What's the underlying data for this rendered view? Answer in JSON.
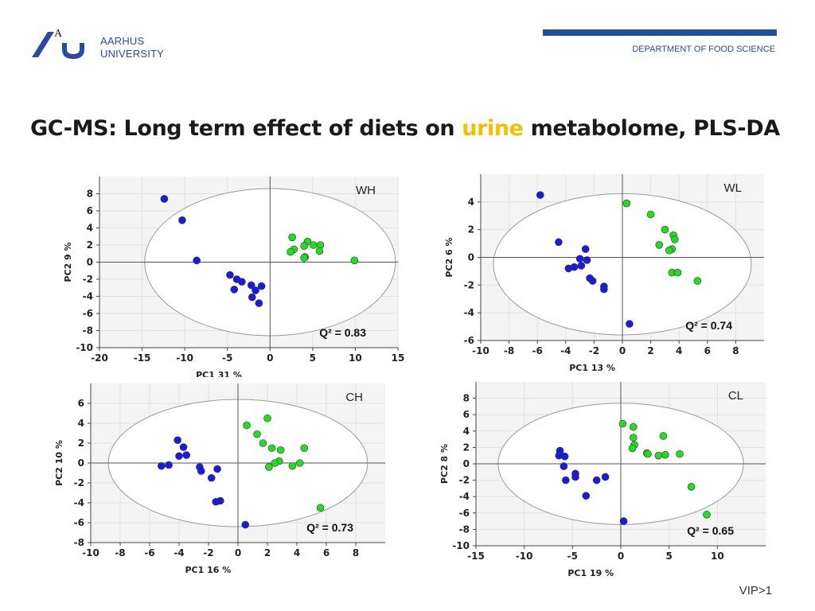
{
  "header": {
    "university_line1": "AARHUS",
    "university_line2": "UNIVERSITY",
    "logo_letter": "A",
    "department": "DEPARTMENT OF FOOD SCIENCE"
  },
  "title": {
    "prefix": "GC-MS: Long term effect of diets on ",
    "highlight": "urine",
    "suffix": " metabolome, PLS-DA"
  },
  "footer": {
    "note": "VIP>1"
  },
  "colors": {
    "group1": "#1a1ae0",
    "group2": "#22dd22",
    "accent": "#f2c000",
    "brand": "#1f4ea3"
  },
  "chart_data": [
    {
      "type": "scatter",
      "panel_label": "WH",
      "q2": "Q² = 0.83",
      "xlabel": "PC1 31 %",
      "ylabel": "PC2 9 %",
      "xlim": [
        -20,
        15
      ],
      "ylim": [
        -10,
        10
      ],
      "xticks": [
        -20,
        -15,
        -10,
        -5,
        0,
        5,
        10,
        15
      ],
      "yticks": [
        -10,
        -8,
        -6,
        -4,
        -2,
        0,
        2,
        4,
        6,
        8
      ],
      "ellipse": {
        "cx": 0,
        "cy": 0,
        "rx": 14.7,
        "ry": 8.6
      },
      "series": [
        {
          "name": "blue",
          "color": "#1a1ae0",
          "points": [
            [
              -12.4,
              7.4
            ],
            [
              -10.3,
              4.9
            ],
            [
              -8.6,
              0.2
            ],
            [
              -4.7,
              -1.5
            ],
            [
              -3.9,
              -2.0
            ],
            [
              -3.3,
              -2.3
            ],
            [
              -2.2,
              -2.7
            ],
            [
              -1.0,
              -2.8
            ],
            [
              -4.2,
              -3.2
            ],
            [
              -1.7,
              -3.3
            ],
            [
              -2.1,
              -4.1
            ],
            [
              -1.3,
              -4.8
            ]
          ]
        },
        {
          "name": "green",
          "color": "#22dd22",
          "points": [
            [
              2.6,
              2.9
            ],
            [
              4.4,
              2.4
            ],
            [
              5.1,
              2.0
            ],
            [
              5.9,
              2.0
            ],
            [
              4.0,
              1.9
            ],
            [
              2.8,
              1.5
            ],
            [
              5.8,
              1.3
            ],
            [
              2.4,
              1.2
            ],
            [
              4.1,
              0.6
            ],
            [
              4.0,
              0.5
            ],
            [
              9.9,
              0.2
            ]
          ]
        }
      ]
    },
    {
      "type": "scatter",
      "panel_label": "WL",
      "q2": "Q² = 0.74",
      "xlabel": "PC1 13 %",
      "ylabel": "PC2 6 %",
      "xlim": [
        -10,
        10
      ],
      "ylim": [
        -6,
        6
      ],
      "xticks": [
        -10,
        -8,
        -6,
        -4,
        -2,
        0,
        2,
        4,
        6,
        8
      ],
      "yticks": [
        -6,
        -4,
        -2,
        0,
        2,
        4
      ],
      "ellipse": {
        "cx": 0,
        "cy": -0.5,
        "rx": 9.1,
        "ry": 5.1
      },
      "series": [
        {
          "name": "blue",
          "color": "#1a1ae0",
          "points": [
            [
              -5.8,
              4.5
            ],
            [
              -4.5,
              1.1
            ],
            [
              -2.6,
              0.6
            ],
            [
              -3.0,
              -0.1
            ],
            [
              -2.5,
              -0.2
            ],
            [
              -3.8,
              -0.8
            ],
            [
              -3.4,
              -0.7
            ],
            [
              -2.9,
              -0.6
            ],
            [
              -2.3,
              -1.5
            ],
            [
              -2.1,
              -1.7
            ],
            [
              -1.3,
              -2.1
            ],
            [
              -1.3,
              -2.3
            ],
            [
              0.5,
              -4.8
            ]
          ]
        },
        {
          "name": "green",
          "color": "#22dd22",
          "points": [
            [
              0.3,
              3.9
            ],
            [
              2.0,
              3.1
            ],
            [
              3.0,
              2.0
            ],
            [
              3.6,
              1.6
            ],
            [
              3.7,
              1.3
            ],
            [
              2.6,
              0.9
            ],
            [
              3.5,
              0.6
            ],
            [
              3.3,
              0.5
            ],
            [
              3.5,
              -1.1
            ],
            [
              3.9,
              -1.1
            ],
            [
              5.3,
              -1.7
            ]
          ]
        }
      ]
    },
    {
      "type": "scatter",
      "panel_label": "CH",
      "q2": "Q² = 0.73",
      "xlabel": "PC1 16 %",
      "ylabel": "PC2 10 %",
      "xlim": [
        -10,
        10
      ],
      "ylim": [
        -8,
        8
      ],
      "xticks": [
        -10,
        -8,
        -6,
        -4,
        -2,
        0,
        2,
        4,
        6,
        8
      ],
      "yticks": [
        -8,
        -6,
        -4,
        -2,
        0,
        2,
        4,
        6
      ],
      "ellipse": {
        "cx": 0,
        "cy": 0,
        "rx": 8.8,
        "ry": 6.4
      },
      "series": [
        {
          "name": "blue",
          "color": "#1a1ae0",
          "points": [
            [
              -4.1,
              2.3
            ],
            [
              -3.7,
              1.6
            ],
            [
              -3.5,
              0.8
            ],
            [
              -4.0,
              0.7
            ],
            [
              -5.2,
              -0.3
            ],
            [
              -4.7,
              -0.2
            ],
            [
              -2.6,
              -0.4
            ],
            [
              -2.5,
              -0.8
            ],
            [
              -1.4,
              -0.6
            ],
            [
              -1.8,
              -1.5
            ],
            [
              -1.2,
              -3.8
            ],
            [
              -1.5,
              -3.9
            ],
            [
              0.5,
              -6.2
            ]
          ]
        },
        {
          "name": "green",
          "color": "#22dd22",
          "points": [
            [
              2.0,
              4.5
            ],
            [
              0.6,
              3.8
            ],
            [
              1.3,
              2.9
            ],
            [
              1.7,
              2.0
            ],
            [
              2.3,
              1.5
            ],
            [
              2.9,
              1.3
            ],
            [
              4.5,
              1.5
            ],
            [
              2.8,
              0.2
            ],
            [
              2.5,
              0.0
            ],
            [
              2.1,
              -0.4
            ],
            [
              3.7,
              -0.3
            ],
            [
              4.2,
              0.0
            ],
            [
              5.6,
              -4.5
            ]
          ]
        }
      ]
    },
    {
      "type": "scatter",
      "panel_label": "CL",
      "q2": "Q² = 0.65",
      "xlabel": "PC1 19 %",
      "ylabel": "PC2 8 %",
      "xlim": [
        -15,
        15
      ],
      "ylim": [
        -10,
        10
      ],
      "xticks": [
        -15,
        -10,
        -5,
        0,
        5,
        10
      ],
      "yticks": [
        -10,
        -8,
        -6,
        -4,
        -2,
        0,
        2,
        4,
        6,
        8
      ],
      "ellipse": {
        "cx": 0,
        "cy": 0,
        "rx": 12.7,
        "ry": 7.4
      },
      "series": [
        {
          "name": "blue",
          "color": "#1a1ae0",
          "points": [
            [
              -6.3,
              1.6
            ],
            [
              -6.4,
              1.0
            ],
            [
              -5.8,
              0.9
            ],
            [
              -5.9,
              -0.3
            ],
            [
              -4.7,
              -1.2
            ],
            [
              -4.7,
              -1.6
            ],
            [
              -5.7,
              -2.0
            ],
            [
              -1.6,
              -1.6
            ],
            [
              -2.5,
              -2.0
            ],
            [
              -3.6,
              -3.9
            ],
            [
              0.3,
              -7.0
            ]
          ]
        },
        {
          "name": "green",
          "color": "#22dd22",
          "points": [
            [
              0.2,
              4.9
            ],
            [
              1.3,
              4.5
            ],
            [
              1.3,
              3.2
            ],
            [
              1.4,
              2.3
            ],
            [
              1.2,
              1.9
            ],
            [
              4.4,
              3.4
            ],
            [
              2.7,
              1.3
            ],
            [
              2.8,
              1.2
            ],
            [
              3.9,
              1.0
            ],
            [
              4.6,
              1.1
            ],
            [
              6.1,
              1.2
            ],
            [
              7.3,
              -2.8
            ],
            [
              8.9,
              -6.2
            ]
          ]
        }
      ]
    }
  ]
}
